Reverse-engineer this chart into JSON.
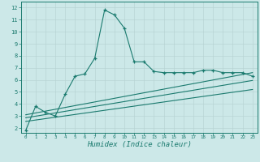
{
  "title": "",
  "xlabel": "Humidex (Indice chaleur)",
  "bg_color": "#cce8e8",
  "line_color": "#1a7a6e",
  "grid_color": "#b8d4d4",
  "x_ticks": [
    0,
    1,
    2,
    3,
    4,
    5,
    6,
    7,
    8,
    9,
    10,
    11,
    12,
    13,
    14,
    15,
    16,
    17,
    18,
    19,
    20,
    21,
    22,
    23
  ],
  "y_ticks": [
    2,
    3,
    4,
    5,
    6,
    7,
    8,
    9,
    10,
    11,
    12
  ],
  "ylim": [
    1.6,
    12.5
  ],
  "xlim": [
    -0.5,
    23.5
  ],
  "curve1_x": [
    0,
    1,
    2,
    3,
    4,
    5,
    6,
    7,
    8,
    9,
    10,
    11,
    12,
    13,
    14,
    15,
    16,
    17,
    18,
    19,
    20,
    21,
    22,
    23
  ],
  "curve1_y": [
    1.8,
    3.8,
    3.3,
    3.0,
    4.8,
    6.3,
    6.5,
    7.8,
    11.8,
    11.4,
    10.3,
    7.5,
    7.5,
    6.7,
    6.6,
    6.6,
    6.6,
    6.6,
    6.8,
    6.8,
    6.6,
    6.6,
    6.6,
    6.3
  ],
  "line2_x": [
    0,
    23
  ],
  "line2_y": [
    3.1,
    6.6
  ],
  "line3_x": [
    0,
    23
  ],
  "line3_y": [
    2.85,
    5.95
  ],
  "line4_x": [
    0,
    23
  ],
  "line4_y": [
    2.55,
    5.2
  ]
}
